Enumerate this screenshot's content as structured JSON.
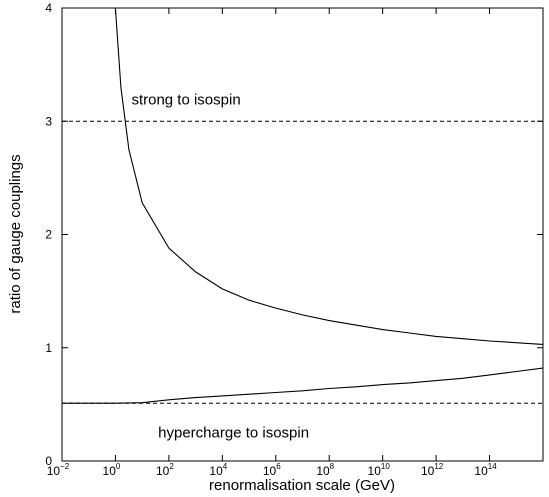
{
  "chart_data": {
    "type": "line",
    "title": "",
    "xlabel": "renormalisation scale (GeV)",
    "ylabel": "ratio of gauge couplings",
    "x_scale": "log",
    "xlim": [
      0.01,
      10000000000000000
    ],
    "ylim": [
      0,
      4
    ],
    "grid": false,
    "x_ticks": [
      {
        "base": "10",
        "exp": "−2"
      },
      {
        "base": "10",
        "exp": "0"
      },
      {
        "base": "10",
        "exp": "2"
      },
      {
        "base": "10",
        "exp": "4"
      },
      {
        "base": "10",
        "exp": "6"
      },
      {
        "base": "10",
        "exp": "8"
      },
      {
        "base": "10",
        "exp": "10"
      },
      {
        "base": "10",
        "exp": "12"
      },
      {
        "base": "10",
        "exp": "14"
      }
    ],
    "x_tick_values": [
      0.01,
      1,
      100,
      10000,
      1000000,
      100000000,
      10000000000,
      1000000000000,
      100000000000000
    ],
    "y_ticks": [
      "0",
      "1",
      "2",
      "3",
      "4"
    ],
    "y_tick_values": [
      0,
      1,
      2,
      3,
      4
    ],
    "series": [
      {
        "points": [
          [
            1,
            4.0
          ],
          [
            1.6,
            3.3
          ],
          [
            3.2,
            2.75
          ],
          [
            10,
            2.28
          ],
          [
            100,
            1.88
          ],
          [
            1000,
            1.67
          ],
          [
            10000,
            1.52
          ],
          [
            100000,
            1.42
          ],
          [
            1000000,
            1.35
          ],
          [
            10000000,
            1.29
          ],
          [
            100000000,
            1.24
          ],
          [
            1000000000,
            1.2
          ],
          [
            10000000000,
            1.16
          ],
          [
            100000000000,
            1.13
          ],
          [
            1000000000000,
            1.1
          ],
          [
            10000000000000,
            1.08
          ],
          [
            100000000000000,
            1.06
          ],
          [
            10000000000000000,
            1.03
          ]
        ]
      },
      {
        "points": [
          [
            0.01,
            0.51
          ],
          [
            1,
            0.51
          ],
          [
            10,
            0.515
          ],
          [
            100,
            0.54
          ],
          [
            1000,
            0.56
          ],
          [
            10000,
            0.575
          ],
          [
            100000,
            0.59
          ],
          [
            1000000,
            0.605
          ],
          [
            10000000,
            0.62
          ],
          [
            100000000,
            0.64
          ],
          [
            1000000000,
            0.655
          ],
          [
            10000000000,
            0.675
          ],
          [
            100000000000,
            0.69
          ],
          [
            1000000000000,
            0.71
          ],
          [
            10000000000000,
            0.73
          ],
          [
            100000000000000,
            0.76
          ],
          [
            1000000000000000,
            0.79
          ],
          [
            10000000000000000,
            0.82
          ]
        ]
      }
    ],
    "reference_lines": [
      {
        "y": 3.0,
        "style": "dashed"
      },
      {
        "y": 0.51,
        "style": "dashed"
      }
    ],
    "annotations": [
      {
        "text": "strong to isospin",
        "x": 1,
        "y": 3.19
      },
      {
        "text": "hypercharge to isospin",
        "x": 10,
        "y": 0.25
      }
    ]
  }
}
